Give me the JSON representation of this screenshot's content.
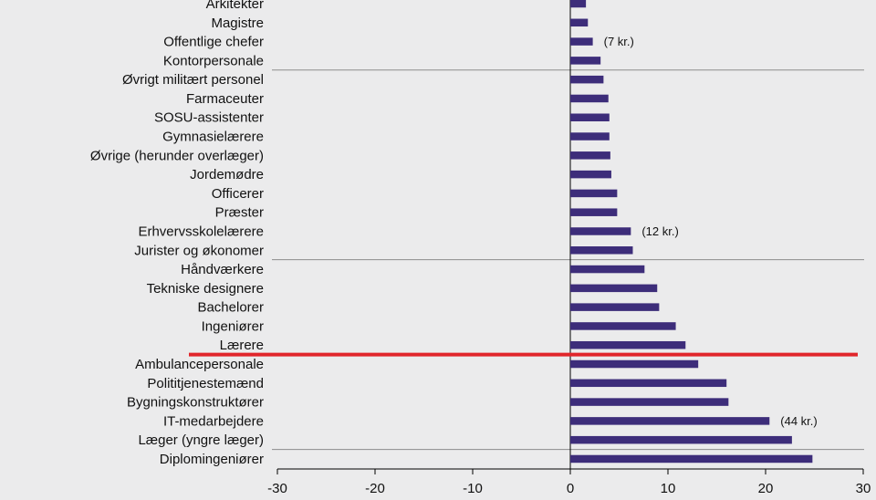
{
  "chart_data": {
    "type": "bar",
    "orientation": "horizontal",
    "categories": [
      "Arkitekter",
      "Magistre",
      "Offentlige chefer",
      "Kontorpersonale",
      "Øvrigt militært personel",
      "Farmaceuter",
      "SOSU-assistenter",
      "Gymnasielærere",
      "Øvrige (herunder overlæger)",
      "Jordemødre",
      "Officerer",
      "Præster",
      "Erhvervsskolelærere",
      "Jurister og økonomer",
      "Håndværkere",
      "Tekniske designere",
      "Bachelorer",
      "Ingeniører",
      "Lærere",
      "Ambulancepersonale",
      "Polititjenestemænd",
      "Bygningskonstruktører",
      "IT-medarbejdere",
      "Læger (yngre læger)",
      "Diplomingeniører"
    ],
    "values": [
      1.6,
      1.8,
      2.3,
      3.1,
      3.4,
      3.9,
      4.0,
      4.0,
      4.1,
      4.2,
      4.8,
      4.8,
      6.2,
      6.4,
      7.6,
      8.9,
      9.1,
      10.8,
      11.8,
      13.1,
      16.0,
      16.2,
      20.4,
      22.7,
      24.8
    ],
    "annotations": [
      {
        "category": "Offentlige chefer",
        "text": "(7 kr.)"
      },
      {
        "category": "Erhvervsskolelærere",
        "text": "(12 kr.)"
      },
      {
        "category": "IT-medarbejdere",
        "text": "(44 kr.)"
      }
    ],
    "xlim": [
      -30,
      30
    ],
    "xticks": [
      -30,
      -20,
      -10,
      0,
      10,
      20,
      30
    ],
    "group_separators_after": [
      "Kontorpersonale",
      "Jurister og økonomer",
      "Læger (yngre læger)"
    ],
    "highlight_after": "Lærere",
    "title": "",
    "xlabel": "",
    "ylabel": "",
    "colors": {
      "background": "#ebebec",
      "bar": "#3d2d7a",
      "axis": "#000000",
      "separator": "#8c8c8c",
      "highlight": "#e1262b",
      "text": "#111111"
    }
  }
}
